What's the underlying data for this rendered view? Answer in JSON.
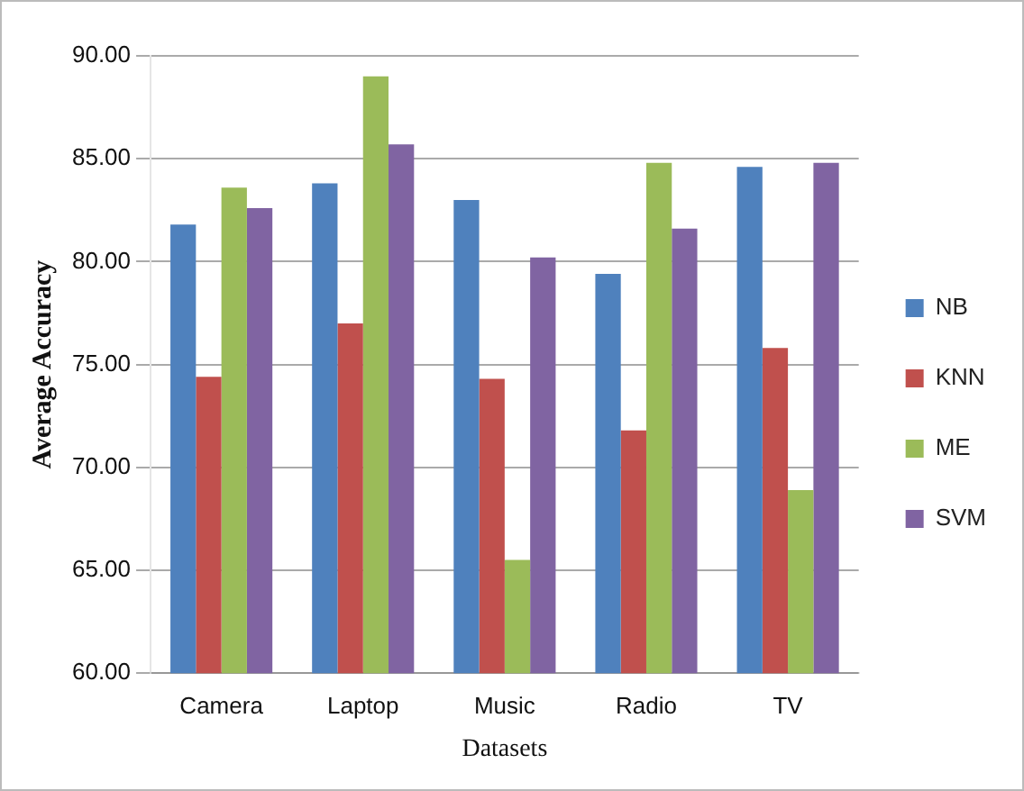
{
  "chart_data": {
    "type": "bar",
    "xlabel": "Datasets",
    "ylabel": "Average Accuracy",
    "categories": [
      "Camera",
      "Laptop",
      "Music",
      "Radio",
      "TV"
    ],
    "series": [
      {
        "name": "NB",
        "color": "#4f81bd",
        "values": [
          81.8,
          83.8,
          83.0,
          79.4,
          84.6
        ]
      },
      {
        "name": "KNN",
        "color": "#c0504d",
        "values": [
          74.4,
          77.0,
          74.3,
          71.8,
          75.8
        ]
      },
      {
        "name": "ME",
        "color": "#9bbb59",
        "values": [
          83.6,
          89.0,
          65.5,
          84.8,
          68.9
        ]
      },
      {
        "name": "SVM",
        "color": "#8064a2",
        "values": [
          82.6,
          85.7,
          80.2,
          81.6,
          84.8
        ]
      }
    ],
    "ylim": [
      60,
      90
    ],
    "yticks": [
      {
        "value": 60,
        "label": "60.00"
      },
      {
        "value": 65,
        "label": "65.00"
      },
      {
        "value": 70,
        "label": "70.00"
      },
      {
        "value": 75,
        "label": "75.00"
      },
      {
        "value": 80,
        "label": "80.00"
      },
      {
        "value": 85,
        "label": "85.00"
      },
      {
        "value": 90,
        "label": "90.00"
      }
    ],
    "grid": "y",
    "legend": "right"
  }
}
